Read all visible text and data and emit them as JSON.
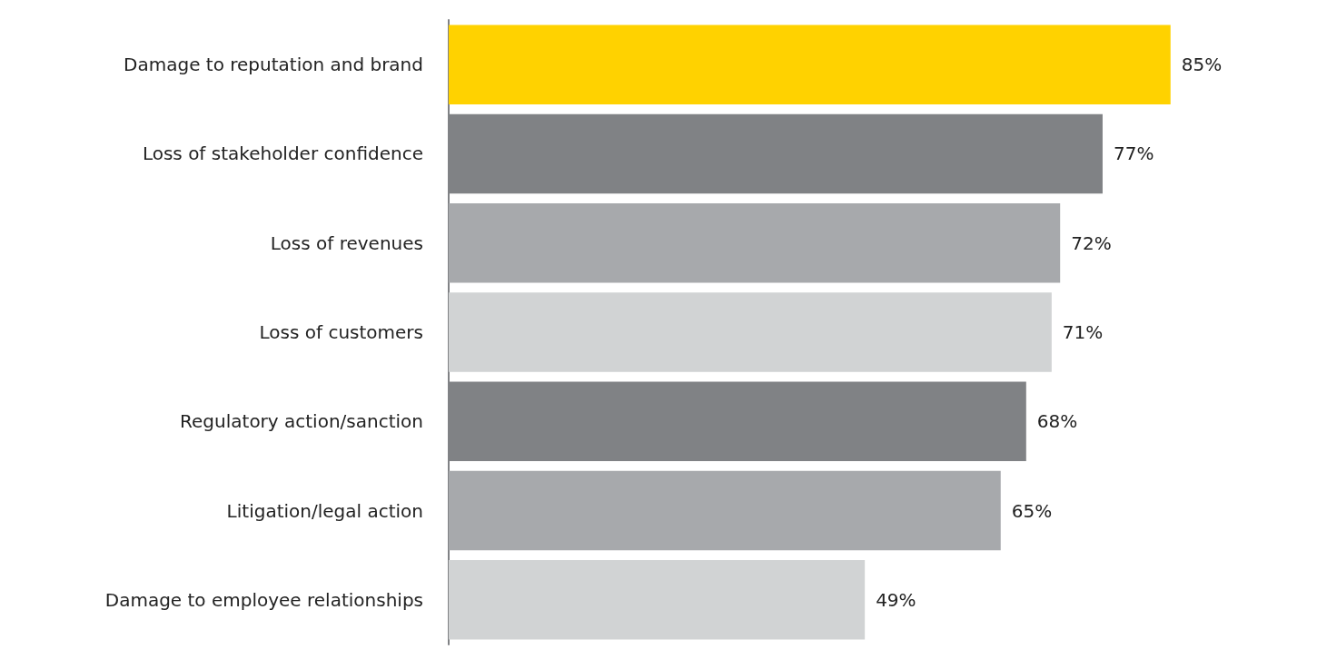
{
  "chart_data": {
    "type": "bar",
    "orientation": "horizontal",
    "categories": [
      "Damage to reputation and brand",
      "Loss of stakeholder confidence",
      "Loss of revenues",
      "Loss of customers",
      "Regulatory action/sanction",
      "Litigation/legal action",
      "Damage to employee relationships"
    ],
    "values": [
      85,
      77,
      72,
      71,
      68,
      65,
      49
    ],
    "colors": [
      "#ffd200",
      "#808285",
      "#a7a9ac",
      "#d1d3d4",
      "#808285",
      "#a7a9ac",
      "#d1d3d4"
    ],
    "value_labels": [
      "85%",
      "77%",
      "72%",
      "71%",
      "68%",
      "65%",
      "49%"
    ]
  }
}
